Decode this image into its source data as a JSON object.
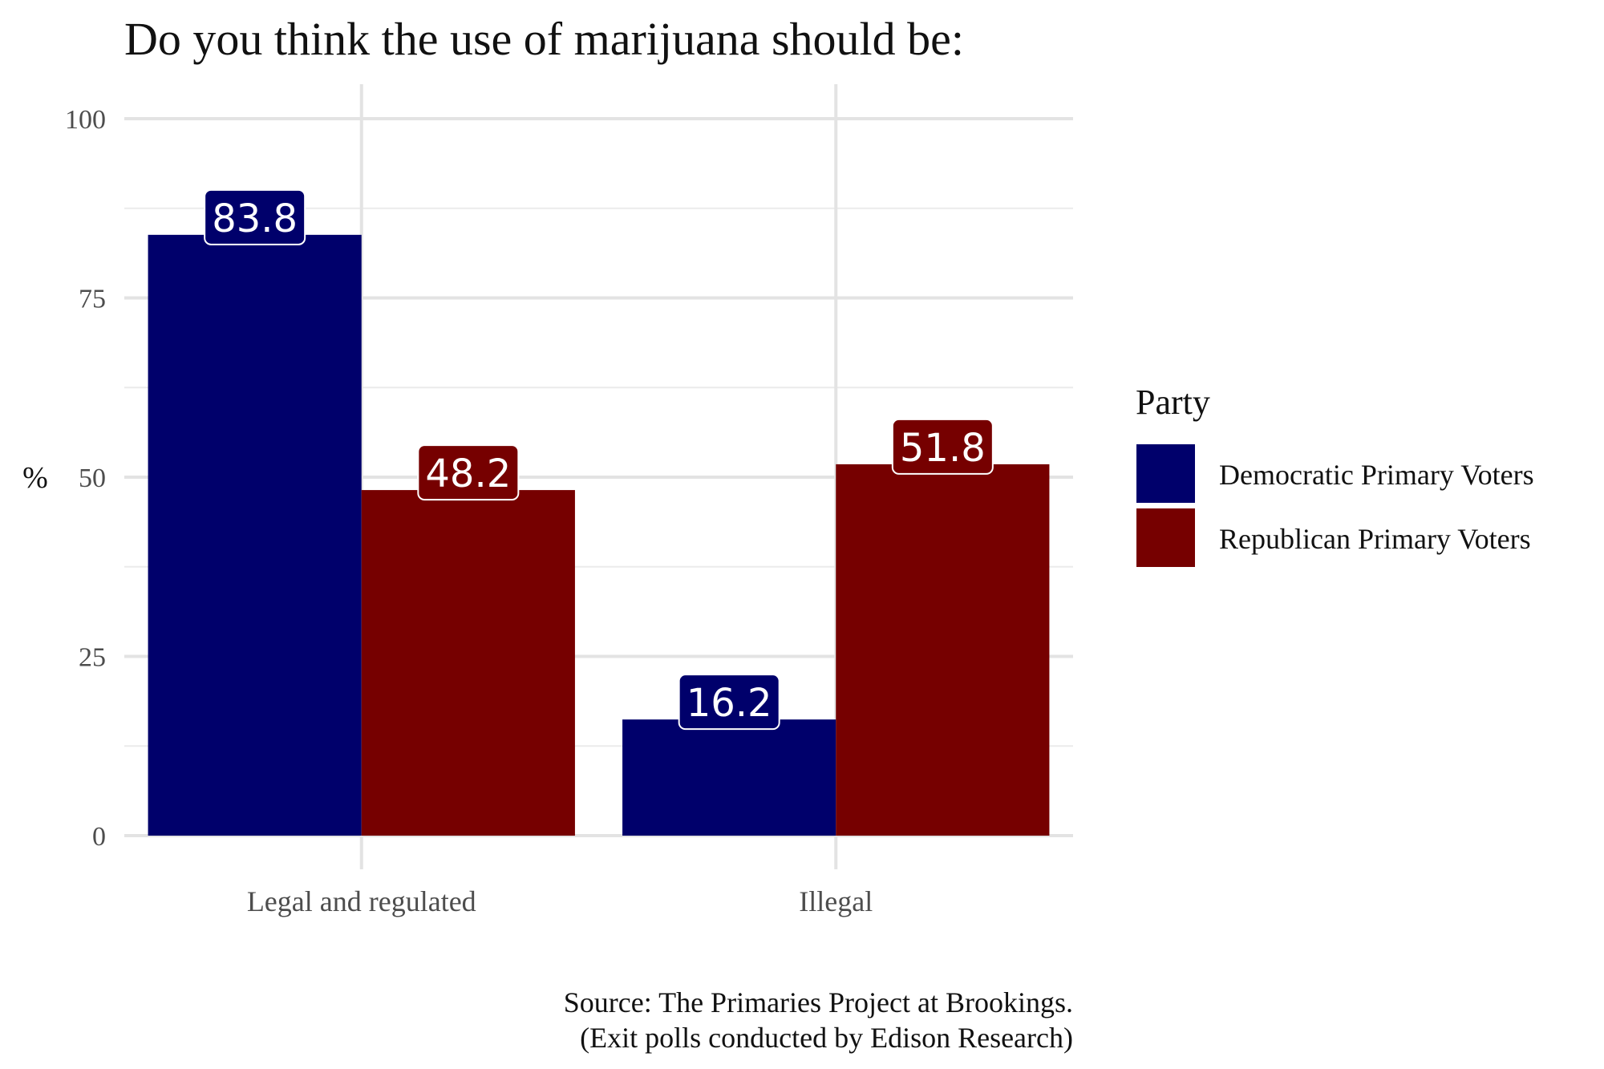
{
  "chart_data": {
    "type": "bar",
    "title": "Do you think the use of marijuana should be:",
    "xlabel": "",
    "ylabel": "%",
    "categories": [
      "Legal and regulated",
      "Illegal"
    ],
    "series": [
      {
        "name": "Democratic Primary Voters",
        "values": [
          83.8,
          16.2
        ],
        "color": "#00006b"
      },
      {
        "name": "Republican Primary Voters",
        "values": [
          48.2,
          51.8
        ],
        "color": "#760000"
      }
    ],
    "data_labels": [
      [
        "83.8",
        "16.2"
      ],
      [
        "48.2",
        "51.8"
      ]
    ],
    "ylim": [
      0,
      100
    ],
    "yticks": [
      0,
      25,
      50,
      75,
      100
    ],
    "ytick_labels": [
      "0",
      "25",
      "50",
      "75",
      "100"
    ],
    "grid": true,
    "legend": {
      "title": "Party",
      "position": "right"
    },
    "caption_lines": [
      "Source: The Primaries Project at Brookings.",
      "(Exit polls conducted by Edison Research)"
    ]
  }
}
